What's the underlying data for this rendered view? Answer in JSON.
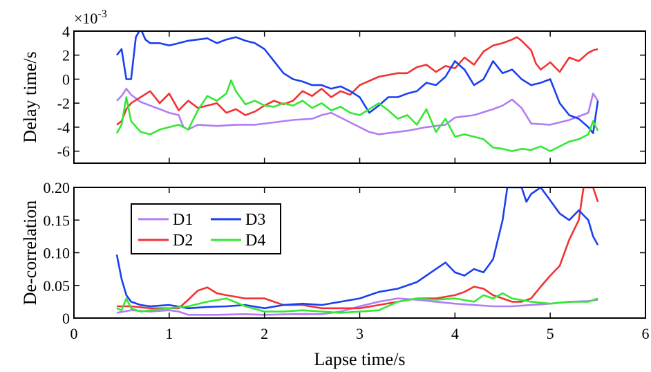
{
  "chart_data": [
    {
      "type": "line",
      "ylabel": "Delay time/s",
      "xlabel": "",
      "exponent_label": "×10",
      "exponent_power": "-3",
      "xlim": [
        0,
        6
      ],
      "ylim": [
        -7,
        4
      ],
      "yticks": [
        -6,
        -4,
        -2,
        0,
        2,
        4
      ],
      "ytick_labels": [
        "-6",
        "-4",
        "-2",
        "0",
        "2",
        "4"
      ],
      "series": [
        {
          "name": "D1",
          "color": "#b07df5",
          "x": [
            0.45,
            0.5,
            0.55,
            0.6,
            0.7,
            0.8,
            0.9,
            1.0,
            1.1,
            1.15,
            1.2,
            1.3,
            1.5,
            1.7,
            1.9,
            2.1,
            2.3,
            2.5,
            2.6,
            2.7,
            2.8,
            2.9,
            3.0,
            3.1,
            3.2,
            3.3,
            3.5,
            3.7,
            3.9,
            4.0,
            4.2,
            4.4,
            4.5,
            4.6,
            4.7,
            4.8,
            5.0,
            5.2,
            5.4,
            5.45,
            5.5
          ],
          "y": [
            -1.8,
            -1.4,
            -0.8,
            -1.3,
            -1.9,
            -2.2,
            -2.5,
            -2.8,
            -3.0,
            -4.0,
            -4.2,
            -3.8,
            -3.9,
            -3.8,
            -3.8,
            -3.6,
            -3.4,
            -3.3,
            -3.0,
            -2.8,
            -3.2,
            -3.6,
            -4.0,
            -4.4,
            -4.6,
            -4.5,
            -4.3,
            -4.0,
            -3.8,
            -3.2,
            -3.0,
            -2.5,
            -2.2,
            -1.7,
            -2.4,
            -3.7,
            -3.8,
            -3.4,
            -2.8,
            -1.2,
            -1.8
          ]
        },
        {
          "name": "D2",
          "color": "#f23232",
          "x": [
            0.45,
            0.5,
            0.55,
            0.6,
            0.7,
            0.8,
            0.9,
            1.0,
            1.1,
            1.2,
            1.3,
            1.4,
            1.5,
            1.6,
            1.7,
            1.8,
            1.9,
            2.0,
            2.1,
            2.2,
            2.3,
            2.4,
            2.5,
            2.6,
            2.7,
            2.8,
            2.9,
            3.0,
            3.2,
            3.4,
            3.5,
            3.6,
            3.7,
            3.8,
            3.9,
            4.0,
            4.1,
            4.2,
            4.3,
            4.4,
            4.5,
            4.6,
            4.65,
            4.7,
            4.8,
            4.85,
            4.9,
            5.0,
            5.1,
            5.2,
            5.3,
            5.4,
            5.45,
            5.5
          ],
          "y": [
            -3.8,
            -3.5,
            -2.5,
            -2.0,
            -1.5,
            -1.0,
            -2.0,
            -1.2,
            -2.6,
            -1.8,
            -2.4,
            -2.2,
            -2.0,
            -2.8,
            -2.5,
            -3.0,
            -2.7,
            -2.2,
            -1.8,
            -2.1,
            -1.8,
            -1.0,
            -1.4,
            -0.8,
            -1.5,
            -1.0,
            -1.3,
            -0.5,
            0.2,
            0.5,
            0.5,
            1.0,
            1.2,
            0.6,
            1.1,
            0.9,
            1.8,
            1.2,
            2.3,
            2.8,
            3.0,
            3.3,
            3.5,
            3.2,
            2.4,
            1.3,
            0.8,
            1.4,
            0.6,
            1.8,
            1.5,
            2.2,
            2.4,
            2.5
          ]
        },
        {
          "name": "D3",
          "color": "#1a3ff0",
          "x": [
            0.45,
            0.5,
            0.55,
            0.6,
            0.65,
            0.7,
            0.75,
            0.8,
            0.9,
            1.0,
            1.1,
            1.2,
            1.3,
            1.4,
            1.5,
            1.6,
            1.7,
            1.8,
            1.9,
            2.0,
            2.1,
            2.2,
            2.3,
            2.4,
            2.5,
            2.6,
            2.7,
            2.8,
            2.9,
            3.0,
            3.1,
            3.2,
            3.3,
            3.4,
            3.5,
            3.6,
            3.7,
            3.8,
            3.9,
            4.0,
            4.1,
            4.2,
            4.3,
            4.4,
            4.5,
            4.6,
            4.7,
            4.8,
            4.9,
            5.0,
            5.1,
            5.2,
            5.3,
            5.4,
            5.45,
            5.5
          ],
          "y": [
            2.0,
            2.5,
            0.0,
            0.0,
            3.5,
            4.2,
            3.3,
            3.0,
            3.0,
            2.8,
            3.0,
            3.2,
            3.3,
            3.4,
            3.0,
            3.3,
            3.5,
            3.2,
            3.0,
            2.5,
            1.5,
            0.5,
            0.0,
            -0.2,
            -0.5,
            -0.5,
            -0.8,
            -0.6,
            -1.0,
            -1.5,
            -2.8,
            -2.2,
            -1.5,
            -1.5,
            -1.2,
            -1.0,
            -0.3,
            -0.5,
            0.2,
            1.5,
            0.8,
            -0.5,
            0.0,
            1.5,
            0.5,
            0.8,
            0.0,
            -0.5,
            -0.3,
            0.0,
            -2.0,
            -3.0,
            -3.3,
            -4.0,
            -4.5,
            -1.8
          ]
        },
        {
          "name": "D4",
          "color": "#33e833",
          "x": [
            0.45,
            0.5,
            0.55,
            0.6,
            0.7,
            0.8,
            0.9,
            1.0,
            1.1,
            1.2,
            1.3,
            1.4,
            1.5,
            1.6,
            1.65,
            1.7,
            1.8,
            1.9,
            2.0,
            2.1,
            2.2,
            2.3,
            2.4,
            2.5,
            2.6,
            2.7,
            2.8,
            2.9,
            3.0,
            3.1,
            3.2,
            3.3,
            3.4,
            3.5,
            3.6,
            3.7,
            3.8,
            3.9,
            4.0,
            4.1,
            4.2,
            4.3,
            4.4,
            4.5,
            4.6,
            4.7,
            4.8,
            4.9,
            5.0,
            5.1,
            5.2,
            5.3,
            5.4,
            5.45,
            5.5
          ],
          "y": [
            -4.5,
            -3.8,
            -1.5,
            -3.5,
            -4.4,
            -4.6,
            -4.2,
            -4.0,
            -3.8,
            -4.2,
            -2.6,
            -1.4,
            -1.8,
            -1.2,
            -0.1,
            -1.0,
            -2.1,
            -1.8,
            -2.2,
            -2.3,
            -2.0,
            -2.2,
            -1.8,
            -2.4,
            -2.0,
            -2.6,
            -2.3,
            -2.8,
            -3.0,
            -2.5,
            -2.0,
            -2.6,
            -3.3,
            -3.0,
            -3.8,
            -2.5,
            -4.4,
            -3.3,
            -4.8,
            -4.6,
            -4.8,
            -5.0,
            -5.7,
            -5.8,
            -6.0,
            -5.8,
            -5.9,
            -5.6,
            -6.0,
            -5.6,
            -5.2,
            -5.0,
            -4.6,
            -3.5,
            -4.3
          ]
        }
      ]
    },
    {
      "type": "line",
      "ylabel": "De-correlation",
      "xlabel": "Lapse time/s",
      "xlim": [
        0,
        6
      ],
      "ylim": [
        0,
        0.2
      ],
      "xticks": [
        0,
        1,
        2,
        3,
        4,
        5,
        6
      ],
      "xtick_labels": [
        "0",
        "1",
        "2",
        "3",
        "4",
        "5",
        "6"
      ],
      "yticks": [
        0,
        0.05,
        0.1,
        0.15,
        0.2
      ],
      "ytick_labels": [
        "0",
        "0.05",
        "0.10",
        "0.15",
        "0.20"
      ],
      "legend": {
        "placement": "upper-left",
        "columns": 2,
        "order": [
          "D1",
          "D3",
          "D2",
          "D4"
        ]
      },
      "series": [
        {
          "name": "D1",
          "color": "#b07df5",
          "x": [
            0.45,
            0.6,
            0.8,
            1.0,
            1.1,
            1.2,
            1.5,
            1.8,
            2.0,
            2.3,
            2.6,
            2.8,
            3.0,
            3.2,
            3.4,
            3.6,
            3.8,
            4.0,
            4.2,
            4.4,
            4.6,
            4.8,
            5.0,
            5.2,
            5.4,
            5.5
          ],
          "y": [
            0.008,
            0.012,
            0.01,
            0.012,
            0.01,
            0.005,
            0.005,
            0.006,
            0.005,
            0.006,
            0.006,
            0.01,
            0.018,
            0.025,
            0.03,
            0.028,
            0.025,
            0.022,
            0.02,
            0.018,
            0.018,
            0.02,
            0.022,
            0.025,
            0.026,
            0.028
          ]
        },
        {
          "name": "D2",
          "color": "#f23232",
          "x": [
            0.45,
            0.6,
            0.8,
            1.0,
            1.1,
            1.2,
            1.3,
            1.4,
            1.5,
            1.6,
            1.8,
            2.0,
            2.2,
            2.4,
            2.6,
            2.8,
            3.0,
            3.2,
            3.4,
            3.6,
            3.8,
            4.0,
            4.1,
            4.2,
            4.3,
            4.4,
            4.5,
            4.6,
            4.7,
            4.8,
            4.9,
            5.0,
            5.1,
            5.2,
            5.3,
            5.35,
            5.4,
            5.45,
            5.5
          ],
          "y": [
            0.018,
            0.018,
            0.015,
            0.015,
            0.015,
            0.028,
            0.042,
            0.047,
            0.038,
            0.035,
            0.03,
            0.03,
            0.02,
            0.02,
            0.015,
            0.015,
            0.015,
            0.02,
            0.025,
            0.03,
            0.03,
            0.035,
            0.04,
            0.048,
            0.045,
            0.035,
            0.03,
            0.025,
            0.025,
            0.03,
            0.048,
            0.065,
            0.08,
            0.12,
            0.15,
            0.2,
            0.2,
            0.2,
            0.178
          ]
        },
        {
          "name": "D3",
          "color": "#1a3ff0",
          "x": [
            0.45,
            0.5,
            0.55,
            0.6,
            0.7,
            0.8,
            1.0,
            1.2,
            1.4,
            1.6,
            1.8,
            2.0,
            2.2,
            2.4,
            2.6,
            2.8,
            3.0,
            3.1,
            3.2,
            3.4,
            3.6,
            3.8,
            3.9,
            4.0,
            4.1,
            4.2,
            4.3,
            4.4,
            4.5,
            4.55,
            4.6,
            4.7,
            4.75,
            4.8,
            4.9,
            5.0,
            5.1,
            5.2,
            5.3,
            5.4,
            5.45,
            5.5
          ],
          "y": [
            0.097,
            0.06,
            0.035,
            0.025,
            0.02,
            0.018,
            0.02,
            0.015,
            0.017,
            0.018,
            0.02,
            0.015,
            0.02,
            0.022,
            0.02,
            0.025,
            0.03,
            0.035,
            0.04,
            0.045,
            0.055,
            0.075,
            0.085,
            0.07,
            0.065,
            0.075,
            0.07,
            0.09,
            0.15,
            0.2,
            0.2,
            0.2,
            0.178,
            0.19,
            0.2,
            0.18,
            0.16,
            0.15,
            0.165,
            0.15,
            0.125,
            0.112
          ]
        },
        {
          "name": "D4",
          "color": "#33e833",
          "x": [
            0.45,
            0.5,
            0.55,
            0.6,
            0.7,
            0.8,
            1.0,
            1.2,
            1.4,
            1.6,
            1.8,
            2.0,
            2.2,
            2.4,
            2.6,
            2.8,
            3.0,
            3.2,
            3.4,
            3.6,
            3.8,
            4.0,
            4.2,
            4.3,
            4.4,
            4.5,
            4.6,
            4.8,
            5.0,
            5.2,
            5.4,
            5.5
          ],
          "y": [
            0.015,
            0.012,
            0.03,
            0.015,
            0.01,
            0.012,
            0.015,
            0.018,
            0.025,
            0.03,
            0.018,
            0.01,
            0.01,
            0.012,
            0.01,
            0.008,
            0.01,
            0.012,
            0.025,
            0.03,
            0.028,
            0.03,
            0.025,
            0.035,
            0.03,
            0.038,
            0.03,
            0.025,
            0.022,
            0.025,
            0.025,
            0.03
          ]
        }
      ]
    }
  ]
}
